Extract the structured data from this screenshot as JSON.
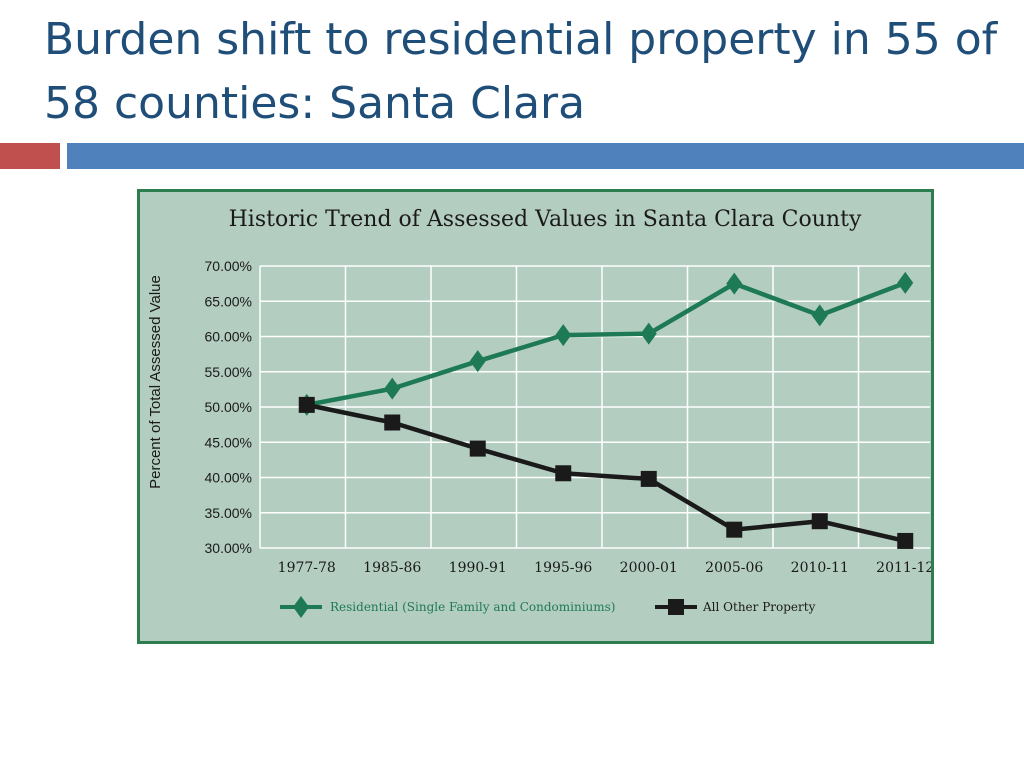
{
  "slide": {
    "title": "Burden shift to residential property in 55 of 58 counties: Santa Clara"
  },
  "colors": {
    "title_text": "#1f4e79",
    "accent_red": "#c0504d",
    "accent_blue": "#4f81bd",
    "chart_border": "#2e7d4f",
    "chart_background": "#b4cdc1",
    "grid": "#ffffff"
  },
  "chart_data": {
    "type": "line",
    "title": "Historic Trend of Assessed Values in Santa Clara County",
    "xlabel": "",
    "ylabel": "Percent of Total Assessed Value",
    "categories": [
      "1977-78",
      "1985-86",
      "1990-91",
      "1995-96",
      "2000-01",
      "2005-06",
      "2010-11",
      "2011-12"
    ],
    "yticks": [
      "70.00%",
      "65.00%",
      "60.00%",
      "55.00%",
      "50.00%",
      "45.00%",
      "40.00%",
      "35.00%",
      "30.00%"
    ],
    "ylim": [
      30,
      70
    ],
    "grid": true,
    "legend_position": "bottom",
    "series": [
      {
        "name": "Residential (Single Family and Condominiums)",
        "color": "#1e7a55",
        "marker": "diamond",
        "values": [
          50.3,
          52.6,
          56.5,
          60.2,
          60.4,
          67.5,
          63.0,
          67.6
        ]
      },
      {
        "name": "All Other Property",
        "color": "#1a1a1a",
        "marker": "square",
        "values": [
          50.3,
          47.8,
          44.1,
          40.6,
          39.8,
          32.6,
          33.8,
          31.0
        ]
      }
    ]
  }
}
